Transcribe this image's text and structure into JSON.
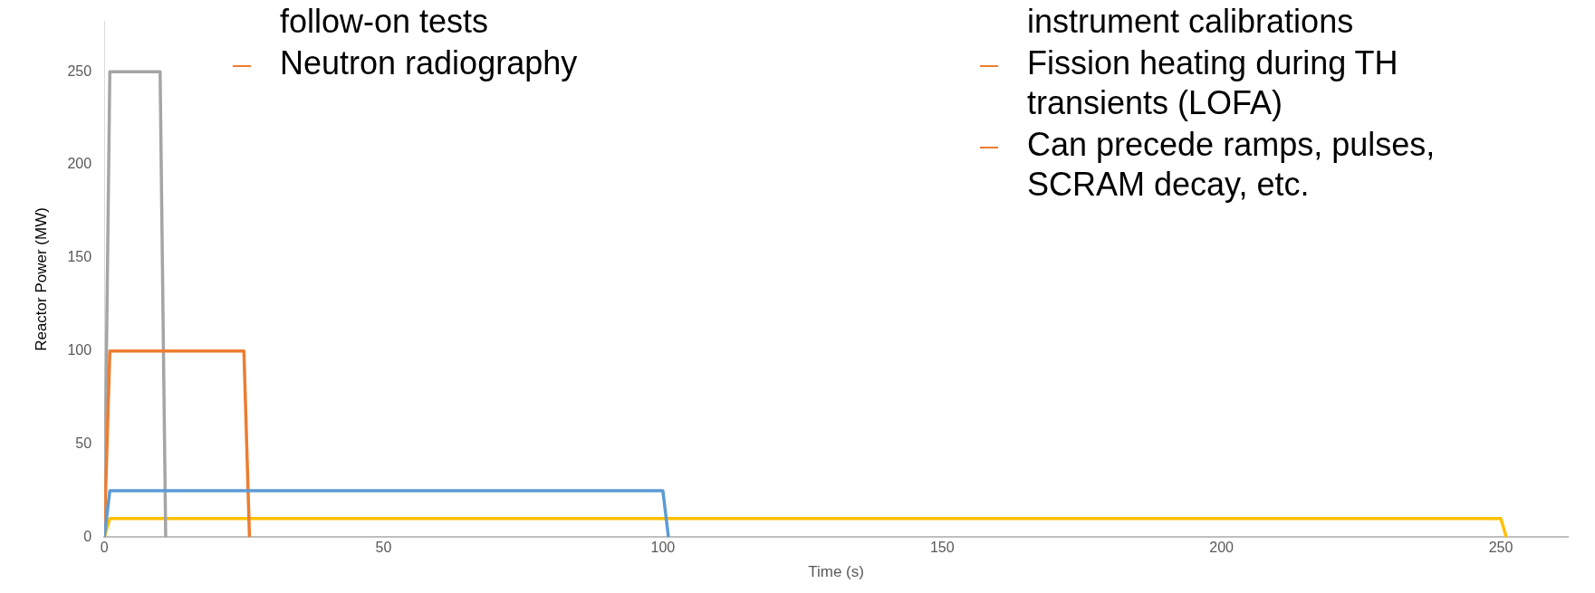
{
  "chart_data": {
    "type": "line",
    "xlabel": "Time (s)",
    "ylabel": "Reactor Power (MW)",
    "xlim": [
      0,
      262
    ],
    "xticks": [
      0,
      50,
      100,
      150,
      200,
      250
    ],
    "ylim": [
      0,
      277
    ],
    "yticks": [
      0,
      50,
      100,
      150,
      200,
      250
    ],
    "grid": false,
    "legend": false,
    "marker": "none",
    "line_style": "solid",
    "series": [
      {
        "color": "#5b9bd5",
        "x": [
          0,
          1,
          100,
          101
        ],
        "values": [
          0,
          25,
          25,
          0
        ]
      },
      {
        "color": "#ed7d31",
        "x": [
          0,
          1,
          25,
          26
        ],
        "values": [
          0,
          100,
          100,
          0
        ]
      },
      {
        "color": "#a5a5a5",
        "x": [
          0,
          1,
          10,
          11
        ],
        "values": [
          0,
          250,
          250,
          0
        ]
      },
      {
        "color": "#ffc000",
        "x": [
          0,
          1,
          250,
          251
        ],
        "values": [
          0,
          10,
          10,
          0
        ]
      }
    ],
    "annotations": [
      "follow-on tests",
      "Neutron radiography",
      "instrument calibrations",
      "Fission heating during TH transients (LOFA)",
      "Can precede ramps, pulses, SCRAM decay, etc."
    ]
  }
}
